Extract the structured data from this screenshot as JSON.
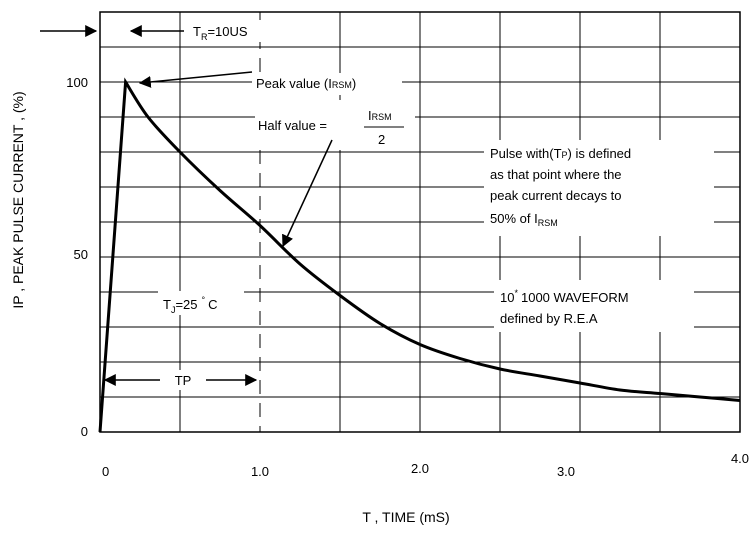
{
  "chart_data": {
    "type": "line",
    "xlabel": "T , TIME  (mS)",
    "ylabel": "IP , PEAK PULSE CURRENT , (%)",
    "xlim": [
      0,
      4.0
    ],
    "ylim": [
      0,
      110
    ],
    "grid": true,
    "x_ticks": [
      "0",
      "1.0",
      "2.0",
      "3.0",
      "4.0"
    ],
    "y_ticks": [
      "0",
      "50",
      "100"
    ],
    "series": [
      {
        "x": [
          0,
          0.16,
          0.3,
          0.5,
          0.75,
          1.0,
          1.25,
          1.5,
          1.75,
          2.0,
          2.25,
          2.5,
          2.75,
          3.0,
          3.25,
          3.5,
          3.75,
          4.0
        ],
        "values": [
          0,
          100,
          90,
          80,
          69,
          59,
          48,
          39,
          31,
          25,
          21,
          18,
          16,
          14,
          12,
          11,
          10,
          9
        ]
      }
    ],
    "annotations": {
      "tr_label": "T",
      "tr_sub": "R",
      "tr_value": "=10US",
      "peak": "Peak value (I",
      "peak_sub": "RSM",
      "peak_close": ")",
      "half": "Half value =",
      "frac_num": "I",
      "frac_num_sub": "RSM",
      "frac_den": "2",
      "pulse_1": "Pulse with(T",
      "pulse_1_sub": "P",
      "pulse_1_end": ") is defined",
      "pulse_2": "as that  point where the",
      "pulse_3": "peak current decays to",
      "pulse_4": "50% of  I",
      "pulse_4_sub": "RSM",
      "tj": "T",
      "tj_sub": "J",
      "tj_value": "=25",
      "tj_deg": "°",
      "tj_unit": "C",
      "wave_1a": "10",
      "wave_1sup": "*",
      "wave_1b": "1000 WAVEFORM",
      "wave_2": "defined by R.E.A",
      "tp": "TP"
    }
  }
}
